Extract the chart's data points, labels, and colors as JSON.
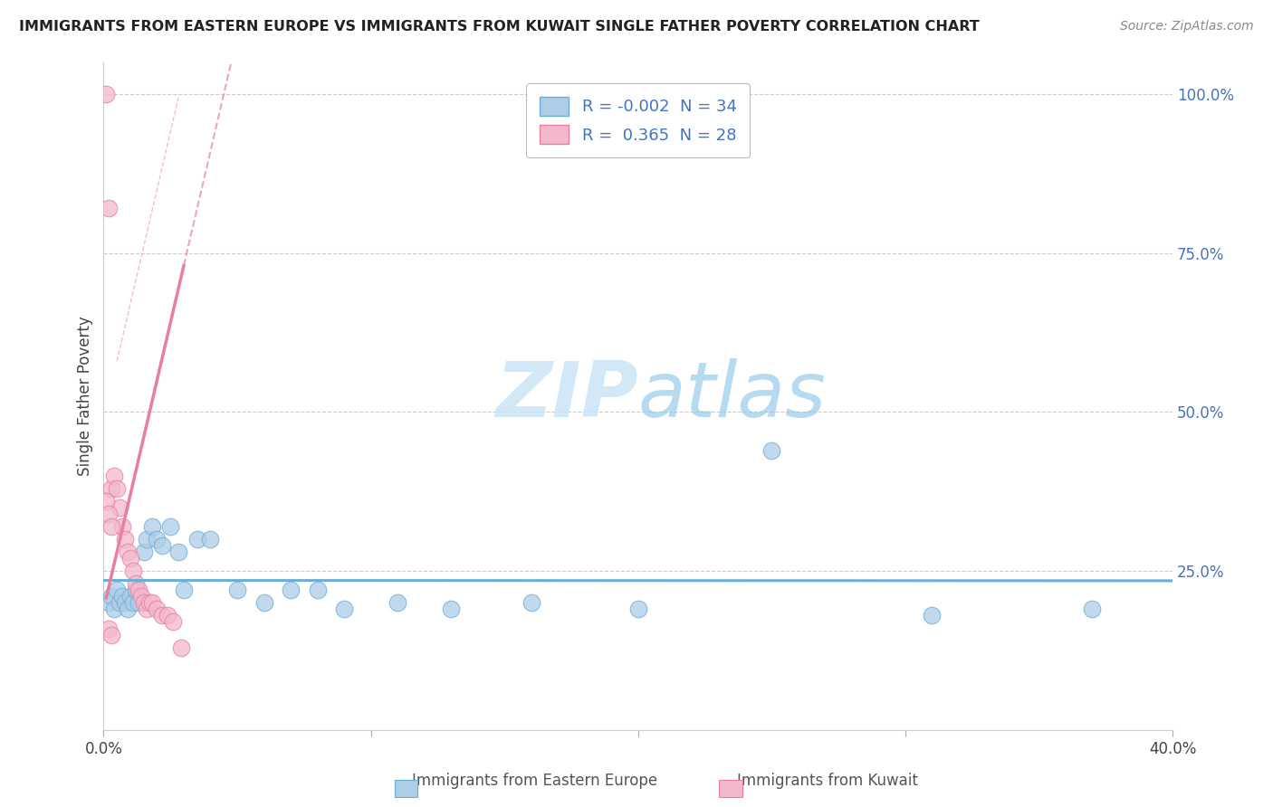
{
  "title": "IMMIGRANTS FROM EASTERN EUROPE VS IMMIGRANTS FROM KUWAIT SINGLE FATHER POVERTY CORRELATION CHART",
  "source": "Source: ZipAtlas.com",
  "ylabel": "Single Father Poverty",
  "blue_color": "#6baed6",
  "pink_color": "#e87ea1",
  "blue_fill": "#aecde8",
  "pink_fill": "#f4b8cc",
  "watermark_color": "#cce5f5",
  "title_color": "#222222",
  "source_color": "#888888",
  "tick_color": "#4472c4",
  "ylabel_color": "#444444",
  "grid_color": "#cccccc",
  "xlim": [
    0.0,
    0.4
  ],
  "ylim": [
    0.0,
    1.05
  ],
  "blue_x": [
    0.002,
    0.003,
    0.004,
    0.005,
    0.006,
    0.007,
    0.008,
    0.009,
    0.01,
    0.011,
    0.012,
    0.013,
    0.015,
    0.016,
    0.018,
    0.02,
    0.022,
    0.025,
    0.028,
    0.03,
    0.035,
    0.04,
    0.05,
    0.06,
    0.07,
    0.08,
    0.09,
    0.11,
    0.13,
    0.16,
    0.2,
    0.25,
    0.31,
    0.37
  ],
  "blue_y": [
    0.2,
    0.21,
    0.19,
    0.22,
    0.2,
    0.21,
    0.2,
    0.19,
    0.21,
    0.2,
    0.22,
    0.2,
    0.28,
    0.3,
    0.32,
    0.3,
    0.29,
    0.32,
    0.28,
    0.22,
    0.3,
    0.3,
    0.22,
    0.2,
    0.22,
    0.22,
    0.19,
    0.2,
    0.19,
    0.2,
    0.19,
    0.44,
    0.18,
    0.19
  ],
  "pink_x": [
    0.001,
    0.002,
    0.003,
    0.004,
    0.005,
    0.006,
    0.007,
    0.008,
    0.009,
    0.01,
    0.011,
    0.012,
    0.013,
    0.014,
    0.015,
    0.016,
    0.017,
    0.018,
    0.02,
    0.022,
    0.024,
    0.026,
    0.029,
    0.001,
    0.002,
    0.003,
    0.002,
    0.003
  ],
  "pink_y": [
    1.0,
    0.82,
    0.38,
    0.4,
    0.38,
    0.35,
    0.32,
    0.3,
    0.28,
    0.27,
    0.25,
    0.23,
    0.22,
    0.21,
    0.2,
    0.19,
    0.2,
    0.2,
    0.19,
    0.18,
    0.18,
    0.17,
    0.13,
    0.36,
    0.34,
    0.32,
    0.16,
    0.15
  ],
  "legend_R1": "-0.002",
  "legend_N1": "34",
  "legend_R2": "0.365",
  "legend_N2": "28"
}
